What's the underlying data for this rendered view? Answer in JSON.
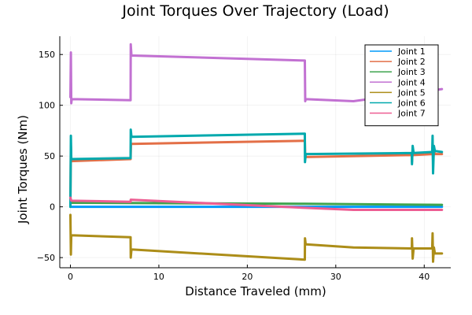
{
  "chart_data": {
    "type": "line",
    "title": "Joint Torques Over Trajectory (Load)",
    "xlabel": "Distance Traveled (mm)",
    "ylabel": "Joint Torques (Nm)",
    "xlim": [
      -1.2,
      43
    ],
    "ylim": [
      -60,
      168
    ],
    "x_ticks": [
      0,
      10,
      20,
      30,
      40
    ],
    "y_ticks": [
      -50,
      0,
      50,
      100,
      150
    ],
    "grid": true,
    "legend_position": "top-right",
    "series": [
      {
        "name": "Joint 1",
        "color": "#009AFA",
        "points": [
          [
            0,
            0
          ],
          [
            42,
            0
          ]
        ]
      },
      {
        "name": "Joint 2",
        "color": "#E36F47",
        "points": [
          [
            0,
            8
          ],
          [
            0.05,
            60
          ],
          [
            0.1,
            45
          ],
          [
            6.8,
            47
          ],
          [
            6.85,
            62
          ],
          [
            26.5,
            65
          ],
          [
            26.55,
            49
          ],
          [
            38.6,
            51
          ],
          [
            38.62,
            44
          ],
          [
            38.7,
            58
          ],
          [
            38.8,
            51
          ],
          [
            40.9,
            52
          ],
          [
            40.95,
            59
          ],
          [
            41.0,
            45
          ],
          [
            41.1,
            56
          ],
          [
            41.2,
            52
          ],
          [
            42,
            52
          ]
        ]
      },
      {
        "name": "Joint 3",
        "color": "#3EA44E",
        "points": [
          [
            0,
            4
          ],
          [
            26.5,
            3
          ],
          [
            42,
            2
          ]
        ]
      },
      {
        "name": "Joint 4",
        "color": "#C271D2",
        "points": [
          [
            0,
            108
          ],
          [
            0.05,
            152
          ],
          [
            0.1,
            102
          ],
          [
            0.15,
            106
          ],
          [
            6.8,
            105
          ],
          [
            6.82,
            160
          ],
          [
            6.9,
            149
          ],
          [
            26.5,
            144
          ],
          [
            26.55,
            104
          ],
          [
            26.6,
            106
          ],
          [
            32.0,
            104
          ],
          [
            42,
            116
          ]
        ]
      },
      {
        "name": "Joint 5",
        "color": "#AC8D18",
        "points": [
          [
            0,
            -8
          ],
          [
            0.05,
            -47
          ],
          [
            0.1,
            -28
          ],
          [
            6.8,
            -30
          ],
          [
            6.82,
            -50
          ],
          [
            6.9,
            -42
          ],
          [
            26.5,
            -52
          ],
          [
            26.52,
            -31
          ],
          [
            26.6,
            -37
          ],
          [
            32.0,
            -40
          ],
          [
            38.6,
            -41
          ],
          [
            38.62,
            -31
          ],
          [
            38.7,
            -51
          ],
          [
            38.8,
            -41
          ],
          [
            40.9,
            -41
          ],
          [
            40.95,
            -26
          ],
          [
            41.0,
            -54
          ],
          [
            41.1,
            -40
          ],
          [
            41.2,
            -46
          ],
          [
            42,
            -46
          ]
        ]
      },
      {
        "name": "Joint 6",
        "color": "#00A9AD",
        "points": [
          [
            0,
            0
          ],
          [
            0.05,
            70
          ],
          [
            0.1,
            47
          ],
          [
            6.8,
            48
          ],
          [
            6.82,
            76
          ],
          [
            6.9,
            69
          ],
          [
            26.5,
            72
          ],
          [
            26.52,
            44
          ],
          [
            26.6,
            52
          ],
          [
            38.6,
            53
          ],
          [
            38.62,
            42
          ],
          [
            38.7,
            60
          ],
          [
            38.8,
            53
          ],
          [
            40.9,
            54
          ],
          [
            40.95,
            70
          ],
          [
            41.0,
            33
          ],
          [
            41.1,
            60
          ],
          [
            41.2,
            55
          ],
          [
            42,
            54
          ]
        ]
      },
      {
        "name": "Joint 7",
        "color": "#ED5D92",
        "points": [
          [
            0,
            9
          ],
          [
            0.1,
            6
          ],
          [
            6.8,
            5
          ],
          [
            6.82,
            7
          ],
          [
            26.5,
            -1
          ],
          [
            32.0,
            -3
          ],
          [
            42,
            -3
          ]
        ]
      }
    ]
  }
}
